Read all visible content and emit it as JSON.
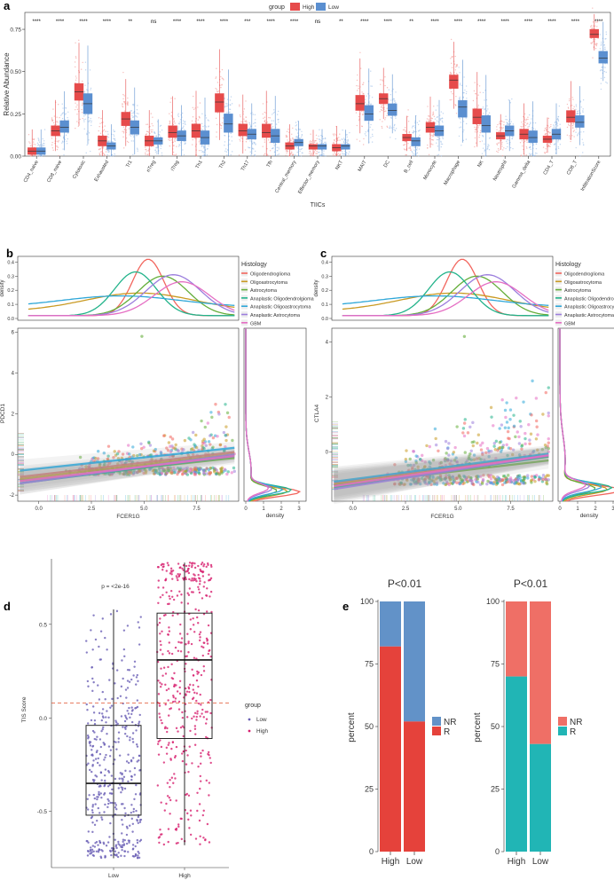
{
  "panels": {
    "a": "a",
    "b": "b",
    "c": "c",
    "d": "d",
    "e": "e"
  },
  "colors": {
    "high": "#e64b4b",
    "low": "#5b8fd0",
    "histology": [
      "#f2665e",
      "#c99a23",
      "#64ae3a",
      "#22b38a",
      "#2fa7d8",
      "#9c7fdd",
      "#e56ec3"
    ],
    "nr_left": "#6292c8",
    "r_left": "#e5423b",
    "nr_right": "#ef6f66",
    "r_right": "#21b5b5",
    "tis_low": "#6a5fb5",
    "tis_high": "#d7206f",
    "refline": "#e0502e"
  },
  "chart_data": [
    {
      "id": "a",
      "type": "box",
      "title": "",
      "legend": {
        "title": "group",
        "entries": [
          "High",
          "Low"
        ],
        "position": "top"
      },
      "xlabel": "TIICs",
      "ylabel": "Relative Abundance",
      "ylim": [
        0,
        0.85
      ],
      "yticks": [
        "0.00",
        "0.25",
        "0.50",
        "0.75"
      ],
      "categories": [
        "CD4_naive",
        "CD8_naive",
        "Cytotoxic",
        "Exhausted",
        "Tr1",
        "nTreg",
        "iTreg",
        "Th1",
        "Th2",
        "Th17",
        "Tfh",
        "Central_memory",
        "Effector_memory",
        "NKT",
        "MAIT",
        "DC",
        "B_cell",
        "Monocyte",
        "Macrophage",
        "NK",
        "Neutrophil",
        "Gamma_delta",
        "CD4_T",
        "CD8_T",
        "InfiltrationScore"
      ],
      "significance": [
        "****",
        "****",
        "****",
        "****",
        "**",
        "ns",
        "****",
        "****",
        "****",
        "***",
        "****",
        "****",
        "ns",
        "**",
        "****",
        "****",
        "**",
        "****",
        "****",
        "****",
        "****",
        "****",
        "****",
        "****",
        "****"
      ],
      "series": [
        {
          "name": "High",
          "q1": [
            0.01,
            0.12,
            0.33,
            0.06,
            0.18,
            0.06,
            0.11,
            0.11,
            0.26,
            0.12,
            0.11,
            0.04,
            0.04,
            0.03,
            0.27,
            0.31,
            0.09,
            0.14,
            0.4,
            0.19,
            0.1,
            0.1,
            0.08,
            0.2,
            0.7
          ],
          "median": [
            0.03,
            0.15,
            0.38,
            0.09,
            0.22,
            0.09,
            0.14,
            0.15,
            0.32,
            0.15,
            0.14,
            0.06,
            0.06,
            0.05,
            0.31,
            0.34,
            0.11,
            0.17,
            0.45,
            0.23,
            0.12,
            0.13,
            0.1,
            0.23,
            0.72
          ],
          "q3": [
            0.05,
            0.18,
            0.43,
            0.12,
            0.26,
            0.12,
            0.18,
            0.19,
            0.37,
            0.19,
            0.19,
            0.08,
            0.07,
            0.07,
            0.36,
            0.37,
            0.13,
            0.2,
            0.48,
            0.28,
            0.14,
            0.16,
            0.12,
            0.27,
            0.75
          ]
        },
        {
          "name": "Low",
          "q1": [
            0.01,
            0.14,
            0.25,
            0.04,
            0.13,
            0.07,
            0.09,
            0.07,
            0.14,
            0.1,
            0.08,
            0.06,
            0.04,
            0.04,
            0.21,
            0.24,
            0.06,
            0.12,
            0.23,
            0.14,
            0.12,
            0.08,
            0.1,
            0.17,
            0.55
          ],
          "median": [
            0.03,
            0.17,
            0.31,
            0.06,
            0.17,
            0.09,
            0.12,
            0.11,
            0.19,
            0.13,
            0.12,
            0.08,
            0.06,
            0.06,
            0.25,
            0.27,
            0.09,
            0.15,
            0.29,
            0.18,
            0.15,
            0.11,
            0.13,
            0.2,
            0.58
          ],
          "q3": [
            0.05,
            0.21,
            0.37,
            0.08,
            0.21,
            0.11,
            0.15,
            0.15,
            0.25,
            0.16,
            0.16,
            0.1,
            0.07,
            0.07,
            0.3,
            0.31,
            0.11,
            0.18,
            0.33,
            0.24,
            0.18,
            0.15,
            0.16,
            0.24,
            0.62
          ]
        }
      ]
    },
    {
      "id": "b",
      "type": "scatter",
      "xlabel": "FCER1G",
      "ylabel": "PDCD1",
      "xticks": [
        "0.0",
        "2.5",
        "5.0",
        "7.5"
      ],
      "yticks": [
        "-2",
        "0",
        "2",
        "4",
        "6"
      ],
      "xlim": [
        -1,
        9.5
      ],
      "ylim": [
        -2.3,
        6.2
      ],
      "density_yticks": [
        "0.0",
        "0.1",
        "0.2",
        "0.3",
        "0.4"
      ],
      "density_ylabel": "density",
      "marginal_xticks": [
        "0",
        "1",
        "2",
        "3"
      ],
      "marginal_xlabel": "density",
      "legend": {
        "title": "Histology",
        "entries": [
          "Oligodendroglioma",
          "Oligoastrocytoma",
          "Astrocytoma",
          "Anaplastic Oligodendrolgioma",
          "Anaplastic Oligoastrocytoma",
          "Anaplastic Astrocytoma",
          "GBM"
        ]
      },
      "density_peaks": [
        {
          "mu": 5.2,
          "sd": 0.75,
          "h": 0.42,
          "base": 0.02
        },
        {
          "mu": 4.8,
          "sd": 2.6,
          "h": 0.18,
          "base": 0.05
        },
        {
          "mu": 5.9,
          "sd": 1.2,
          "h": 0.3,
          "base": 0.02
        },
        {
          "mu": 4.6,
          "sd": 1.0,
          "h": 0.33,
          "base": 0.02
        },
        {
          "mu": 3.9,
          "sd": 2.8,
          "h": 0.16,
          "base": 0.08
        },
        {
          "mu": 6.4,
          "sd": 1.3,
          "h": 0.31,
          "base": 0.02
        },
        {
          "mu": 6.8,
          "sd": 1.3,
          "h": 0.26,
          "base": 0.02
        }
      ],
      "fit_lines": [
        {
          "intercept": -1.0,
          "slope": 0.12
        },
        {
          "intercept": -1.1,
          "slope": 0.12
        },
        {
          "intercept": -1.2,
          "slope": 0.11
        },
        {
          "intercept": -1.3,
          "slope": 0.13
        },
        {
          "intercept": -0.7,
          "slope": 0.11
        },
        {
          "intercept": -1.3,
          "slope": 0.14
        },
        {
          "intercept": -1.2,
          "slope": 0.12
        }
      ]
    },
    {
      "id": "c",
      "type": "scatter",
      "xlabel": "FCER1G",
      "ylabel": "CTLA4",
      "xticks": [
        "0.0",
        "2.5",
        "5.0",
        "7.5"
      ],
      "yticks": [
        "0",
        "2",
        "4"
      ],
      "xlim": [
        -1,
        9.5
      ],
      "ylim": [
        -1.8,
        4.5
      ],
      "density_yticks": [
        "0.0",
        "0.1",
        "0.2",
        "0.3",
        "0.4"
      ],
      "density_ylabel": "density",
      "marginal_xticks": [
        "0",
        "1",
        "2",
        "3"
      ],
      "marginal_xlabel": "density",
      "legend": {
        "title": "Histology",
        "entries": [
          "Oligodendroglioma",
          "Oligoastrocytoma",
          "Astrocytoma",
          "Anaplastic Oligodendrolgioma",
          "Anaplastic Oligoastrocytoma",
          "Anaplastic Astrocytoma",
          "GBM"
        ]
      },
      "density_peaks": [
        {
          "mu": 5.2,
          "sd": 0.75,
          "h": 0.42,
          "base": 0.02
        },
        {
          "mu": 4.8,
          "sd": 2.6,
          "h": 0.18,
          "base": 0.05
        },
        {
          "mu": 5.9,
          "sd": 1.2,
          "h": 0.3,
          "base": 0.02
        },
        {
          "mu": 4.6,
          "sd": 1.0,
          "h": 0.33,
          "base": 0.02
        },
        {
          "mu": 3.9,
          "sd": 2.8,
          "h": 0.16,
          "base": 0.08
        },
        {
          "mu": 6.4,
          "sd": 1.3,
          "h": 0.31,
          "base": 0.02
        },
        {
          "mu": 6.8,
          "sd": 1.3,
          "h": 0.26,
          "base": 0.02
        }
      ],
      "fit_lines": [
        {
          "intercept": -1.05,
          "slope": 0.1
        },
        {
          "intercept": -1.1,
          "slope": 0.1
        },
        {
          "intercept": -1.15,
          "slope": 0.09
        },
        {
          "intercept": -1.2,
          "slope": 0.11
        },
        {
          "intercept": -1.0,
          "slope": 0.1
        },
        {
          "intercept": -1.25,
          "slope": 0.12
        },
        {
          "intercept": -1.15,
          "slope": 0.11
        }
      ]
    },
    {
      "id": "d",
      "type": "box",
      "ylabel": "TIS Score",
      "categories": [
        "Low",
        "High"
      ],
      "annotation": "p = <2e-16",
      "ylim": [
        -0.8,
        0.85
      ],
      "yticks": [
        "-0.5",
        "0.0",
        "0.5"
      ],
      "refline": 0.08,
      "legend": {
        "title": "group",
        "entries": [
          "Low",
          "High"
        ]
      },
      "boxes": [
        {
          "name": "Low",
          "q1": -0.52,
          "median": -0.35,
          "q3": -0.04,
          "min": -0.75,
          "max": 0.58
        },
        {
          "name": "High",
          "q1": -0.11,
          "median": 0.31,
          "q3": 0.56,
          "min": -0.68,
          "max": 0.83
        }
      ]
    },
    {
      "id": "e1",
      "type": "bar",
      "title": "P<0.01",
      "ylabel": "percent",
      "categories": [
        "High",
        "Low"
      ],
      "yticks": [
        "0",
        "25",
        "50",
        "75",
        "100"
      ],
      "ylim": [
        0,
        100
      ],
      "series": [
        {
          "name": "R",
          "values": [
            82,
            52
          ]
        },
        {
          "name": "NR",
          "values": [
            18,
            48
          ]
        }
      ],
      "legend": [
        "NR",
        "R"
      ]
    },
    {
      "id": "e2",
      "type": "bar",
      "title": "P<0.01",
      "ylabel": "percent",
      "categories": [
        "High",
        "Low"
      ],
      "yticks": [
        "0",
        "25",
        "50",
        "75",
        "100"
      ],
      "ylim": [
        0,
        100
      ],
      "series": [
        {
          "name": "R",
          "values": [
            70,
            43
          ]
        },
        {
          "name": "NR",
          "values": [
            30,
            57
          ]
        }
      ],
      "legend": [
        "NR",
        "R"
      ]
    }
  ]
}
